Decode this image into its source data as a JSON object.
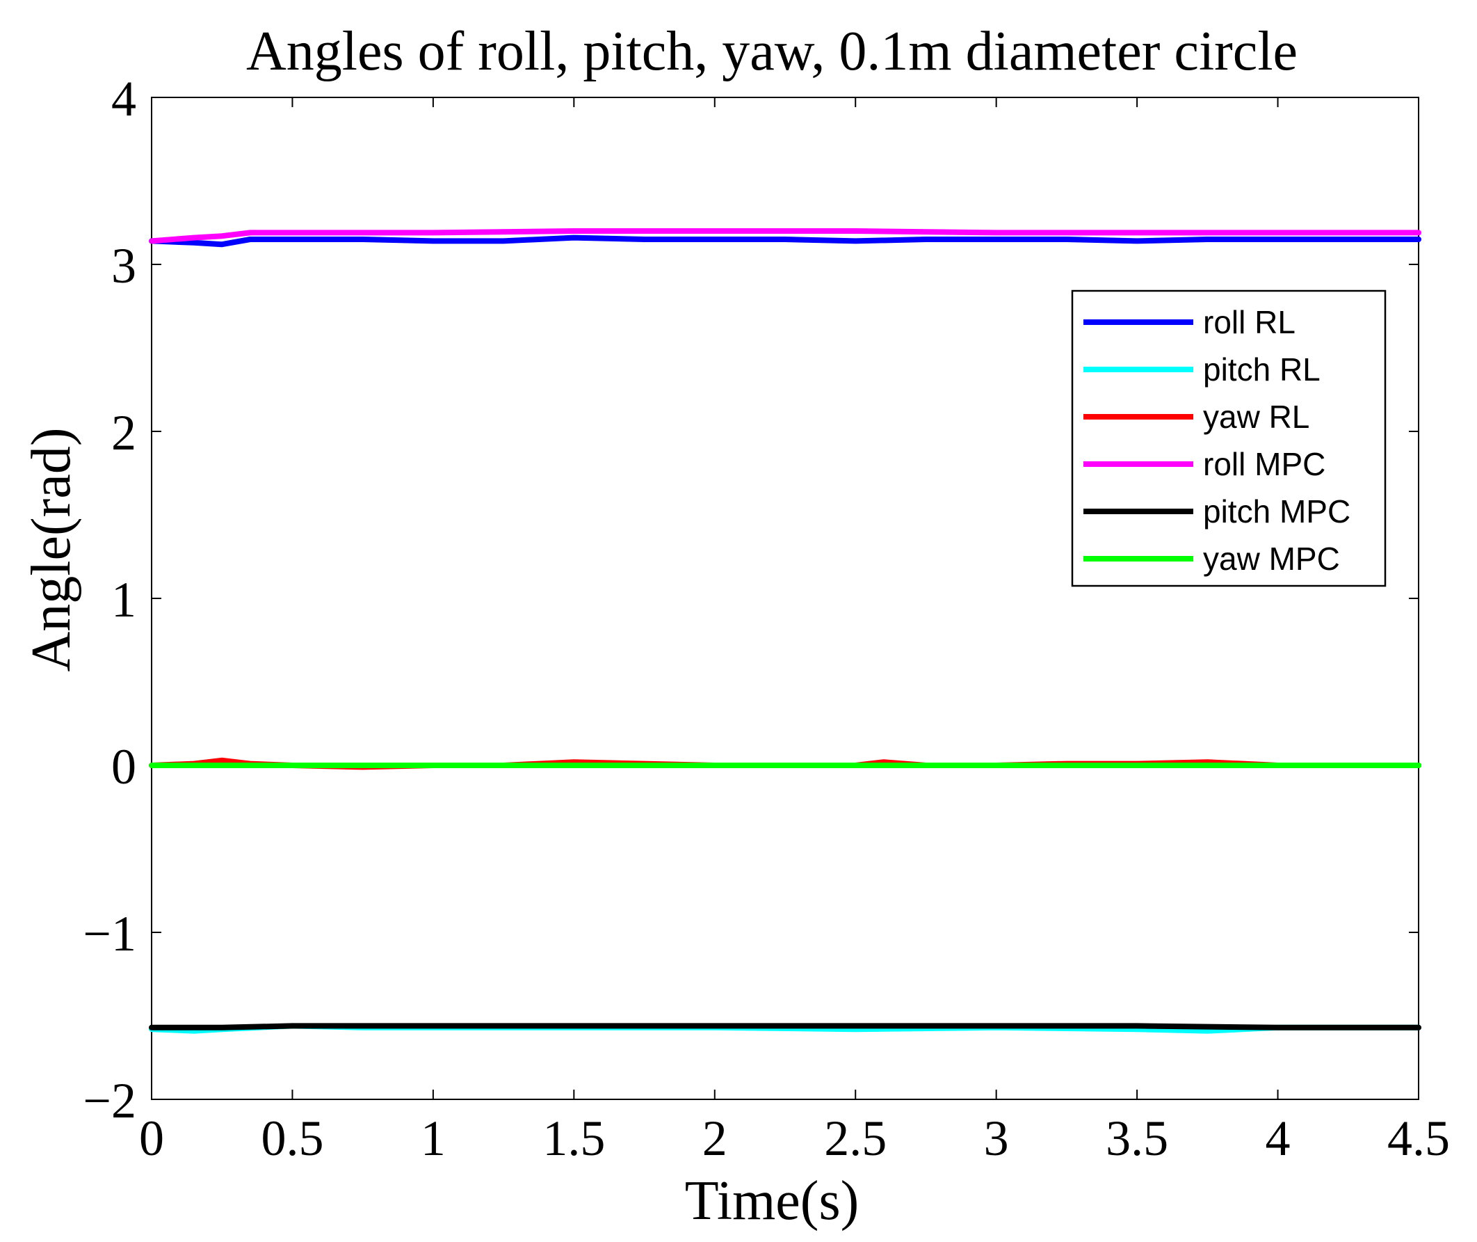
{
  "chart_data": {
    "type": "line",
    "title": "Angles of roll, pitch, yaw, 0.1m diameter circle",
    "xlabel": "Time(s)",
    "ylabel": "Angle(rad)",
    "xlim": [
      0,
      4.5
    ],
    "ylim": [
      -2,
      4
    ],
    "xticks": [
      0,
      0.5,
      1,
      1.5,
      2,
      2.5,
      3,
      3.5,
      4,
      4.5
    ],
    "xtick_labels": [
      "0",
      "0.5",
      "1",
      "1.5",
      "2",
      "2.5",
      "3",
      "3.5",
      "4",
      "4.5"
    ],
    "yticks": [
      -2,
      -1,
      0,
      1,
      2,
      3,
      4
    ],
    "ytick_labels": [
      "−2",
      "−1",
      "0",
      "1",
      "2",
      "3",
      "4"
    ],
    "grid": false,
    "legend_position": "top-right",
    "series": [
      {
        "name": "roll RL",
        "color": "#0000ff",
        "x": [
          0,
          0.15,
          0.25,
          0.35,
          0.5,
          0.75,
          1.0,
          1.25,
          1.5,
          1.75,
          2.0,
          2.25,
          2.5,
          2.75,
          3.0,
          3.25,
          3.5,
          3.75,
          4.0,
          4.25,
          4.5
        ],
        "y": [
          3.14,
          3.13,
          3.12,
          3.15,
          3.15,
          3.15,
          3.14,
          3.14,
          3.16,
          3.15,
          3.15,
          3.15,
          3.14,
          3.15,
          3.15,
          3.15,
          3.14,
          3.15,
          3.15,
          3.15,
          3.15
        ]
      },
      {
        "name": "pitch RL",
        "color": "#00ffff",
        "x": [
          0,
          0.15,
          0.25,
          0.5,
          0.75,
          1.0,
          1.5,
          2.0,
          2.5,
          3.0,
          3.5,
          3.75,
          4.0,
          4.5
        ],
        "y": [
          -1.58,
          -1.59,
          -1.58,
          -1.56,
          -1.57,
          -1.57,
          -1.57,
          -1.57,
          -1.58,
          -1.57,
          -1.58,
          -1.59,
          -1.57,
          -1.57
        ]
      },
      {
        "name": "yaw RL",
        "color": "#ff0000",
        "x": [
          0,
          0.15,
          0.25,
          0.35,
          0.5,
          0.75,
          1.0,
          1.25,
          1.5,
          1.75,
          2.0,
          2.25,
          2.5,
          2.6,
          2.75,
          3.0,
          3.25,
          3.5,
          3.75,
          4.0,
          4.5
        ],
        "y": [
          0.0,
          0.01,
          0.03,
          0.01,
          0.0,
          -0.01,
          0.0,
          0.0,
          0.02,
          0.01,
          0.0,
          0.0,
          0.0,
          0.02,
          0.0,
          0.0,
          0.01,
          0.01,
          0.02,
          0.0,
          0.0
        ]
      },
      {
        "name": "roll MPC",
        "color": "#ff00ff",
        "x": [
          0,
          0.15,
          0.25,
          0.35,
          0.5,
          0.75,
          1.0,
          1.5,
          2.0,
          2.5,
          3.0,
          3.5,
          4.0,
          4.5
        ],
        "y": [
          3.14,
          3.16,
          3.17,
          3.19,
          3.19,
          3.19,
          3.19,
          3.2,
          3.2,
          3.2,
          3.19,
          3.19,
          3.19,
          3.19
        ]
      },
      {
        "name": "pitch MPC",
        "color": "#000000",
        "x": [
          0,
          0.25,
          0.5,
          1.0,
          1.5,
          2.0,
          2.5,
          3.0,
          3.5,
          4.0,
          4.5
        ],
        "y": [
          -1.57,
          -1.57,
          -1.56,
          -1.56,
          -1.56,
          -1.56,
          -1.56,
          -1.56,
          -1.56,
          -1.57,
          -1.57
        ]
      },
      {
        "name": "yaw MPC",
        "color": "#00ff00",
        "x": [
          0,
          0.5,
          1.0,
          1.5,
          2.0,
          2.5,
          3.0,
          3.5,
          4.0,
          4.5
        ],
        "y": [
          0.0,
          0.0,
          0.0,
          0.0,
          0.0,
          0.0,
          0.0,
          0.0,
          0.0,
          0.0
        ]
      }
    ]
  }
}
